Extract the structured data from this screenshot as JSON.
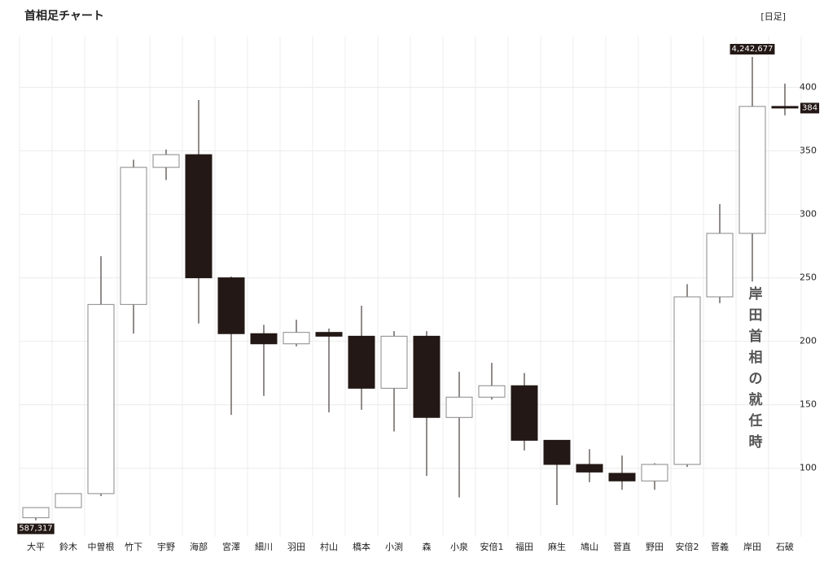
{
  "chart_data": {
    "type": "candlestick",
    "title": "首相足チャート",
    "subtitle": "[日足]",
    "categories": [
      "大平",
      "鈴木",
      "中曽根",
      "竹下",
      "宇野",
      "海部",
      "宮澤",
      "細川",
      "羽田",
      "村山",
      "橋本",
      "小渕",
      "森",
      "小泉",
      "安倍1",
      "福田",
      "麻生",
      "鳩山",
      "菅直",
      "野田",
      "安倍2",
      "菅義",
      "岸田",
      "石破"
    ],
    "open": [
      61,
      69,
      80,
      229,
      337,
      347,
      250,
      206,
      198,
      207,
      204,
      163,
      204,
      140,
      156,
      165,
      122,
      103,
      96,
      90,
      103,
      235,
      285,
      385
    ],
    "high": [
      69,
      80,
      267,
      343,
      351,
      390,
      251,
      213,
      217,
      210,
      228,
      208,
      208,
      176,
      183,
      175,
      122,
      115,
      110,
      104,
      245,
      308,
      424,
      403
    ],
    "low": [
      59,
      69,
      78,
      206,
      327,
      214,
      142,
      157,
      196,
      144,
      146,
      129,
      94,
      77,
      154,
      114,
      71,
      89,
      83,
      83,
      101,
      230,
      247,
      378
    ],
    "close": [
      69,
      80,
      229,
      337,
      347,
      250,
      206,
      198,
      207,
      204,
      163,
      204,
      140,
      156,
      165,
      122,
      103,
      97,
      90,
      103,
      235,
      285,
      385,
      384
    ],
    "up_color": "#ffffff",
    "down_color": "#231815",
    "ylim": [
      46,
      440
    ],
    "yticks": [
      100,
      150,
      200,
      250,
      300,
      350,
      400
    ],
    "grid": true,
    "annotations": [
      "4,242,677",
      "587,317",
      "岸田首相の就任時"
    ]
  }
}
